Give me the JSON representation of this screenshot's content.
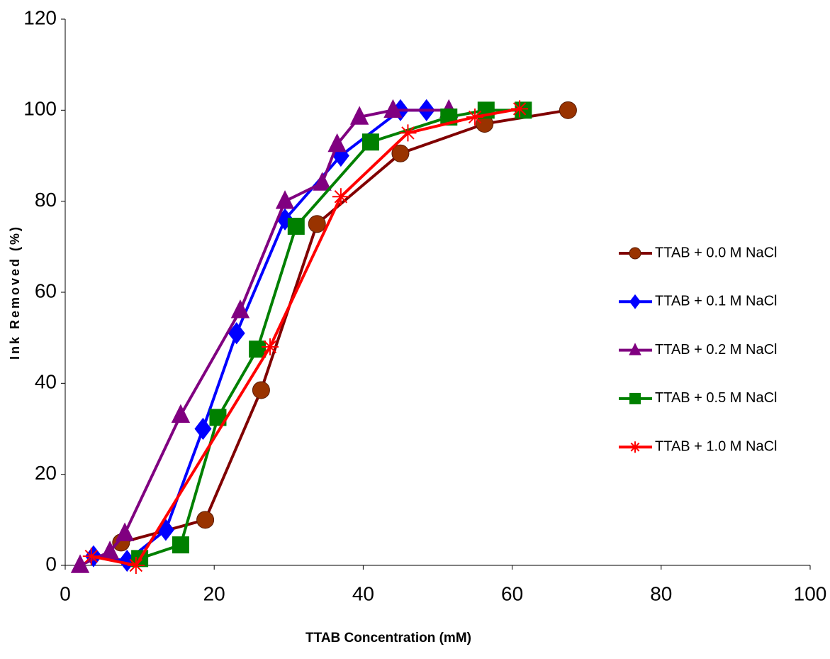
{
  "chart_data": {
    "type": "line",
    "x_label": "TTAB Concentration (mM)",
    "y_label": "Ink Removed (%)",
    "xlim": [
      0,
      100
    ],
    "xticks": [
      0,
      20,
      40,
      60,
      80,
      100
    ],
    "ylim": [
      0,
      120
    ],
    "yticks": [
      0,
      20,
      40,
      60,
      80,
      100,
      120
    ],
    "grid": false,
    "legend": "right",
    "series": [
      {
        "name": "TTAB + 0.0 M NaCl",
        "color": "#800000",
        "marker_color": "#993300",
        "marker": "circle",
        "x": [
          7.5,
          18.8,
          26.3,
          33.8,
          45,
          56.3,
          67.5
        ],
        "values": [
          5,
          10,
          38.5,
          75,
          90.5,
          97,
          100
        ]
      },
      {
        "name": "TTAB + 0.1 M NaCl",
        "color": "#0000FF",
        "marker_color": "#0000FF",
        "marker": "diamond",
        "x": [
          3.8,
          8.3,
          13.5,
          18.5,
          23,
          29.5,
          37,
          45,
          48.5
        ],
        "values": [
          2,
          1,
          7.8,
          30,
          51,
          76,
          90,
          100,
          100
        ]
      },
      {
        "name": "TTAB + 0.2 M NaCl",
        "color": "#800080",
        "marker_color": "#800080",
        "marker": "triangle",
        "x": [
          2,
          6,
          8,
          15.5,
          23.5,
          29.5,
          34.5,
          36.5,
          39.5,
          44,
          51.5
        ],
        "values": [
          0,
          3,
          7,
          33,
          56,
          80,
          84,
          92.5,
          98.5,
          100,
          100
        ]
      },
      {
        "name": "TTAB + 0.5 M NaCl",
        "color": "#008000",
        "marker_color": "#008000",
        "marker": "square",
        "x": [
          10,
          15.5,
          20.5,
          25.8,
          31,
          41,
          51.5,
          56.5,
          61.5
        ],
        "values": [
          1.5,
          4.5,
          32.5,
          47.5,
          74.5,
          93,
          98.5,
          100,
          100
        ]
      },
      {
        "name": "TTAB + 1.0 M NaCl",
        "color": "#FF0000",
        "marker_color": "#FF0000",
        "marker": "star",
        "x": [
          3.5,
          9.5,
          27.5,
          37,
          46,
          55,
          61
        ],
        "values": [
          2,
          0,
          48,
          81,
          95,
          98.5,
          100.3
        ]
      }
    ]
  }
}
